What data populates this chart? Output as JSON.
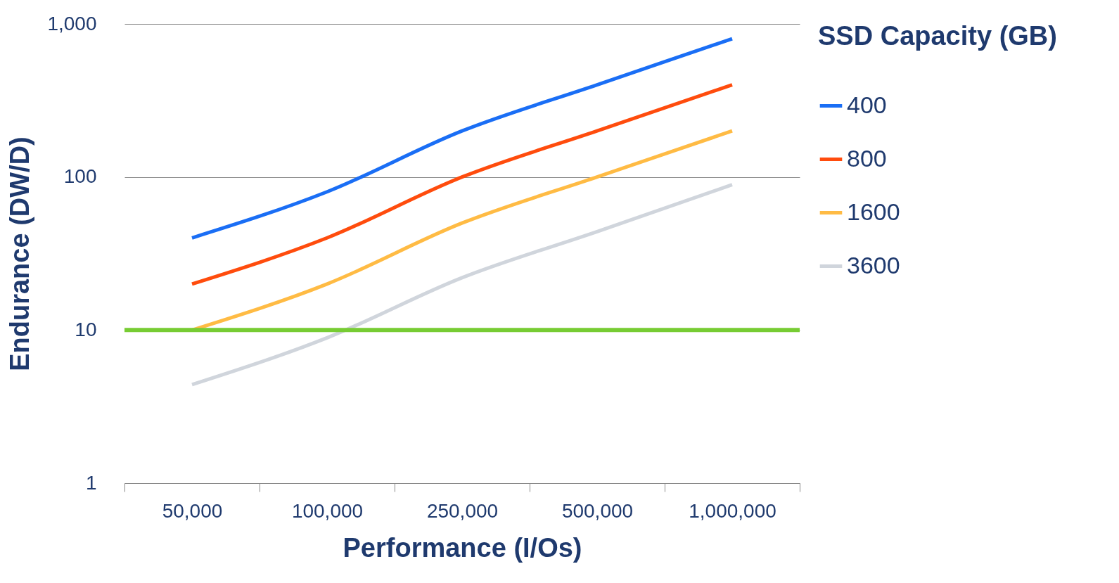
{
  "chart_data": {
    "type": "line",
    "xlabel": "Performance (I/Os)",
    "ylabel": "Endurance (DW/D)",
    "legend_title": "SSD Capacity (GB)",
    "categories": [
      "50,000",
      "100,000",
      "250,000",
      "500,000",
      "1,000,000"
    ],
    "series": [
      {
        "name": "400",
        "color": "#1a6ef5",
        "values": [
          40,
          80,
          200,
          400,
          800
        ]
      },
      {
        "name": "800",
        "color": "#ff4c0d",
        "values": [
          20,
          40,
          100,
          200,
          400
        ]
      },
      {
        "name": "1600",
        "color": "#ffbb44",
        "values": [
          10,
          20,
          50,
          100,
          200
        ]
      },
      {
        "name": "3600",
        "color": "#d0d5dc",
        "values": [
          4.4,
          8.9,
          22,
          44,
          89
        ]
      }
    ],
    "ylim": [
      1,
      1000
    ],
    "yticks": [
      1,
      10,
      100,
      {
        "value": 1000,
        "label": "1,000"
      }
    ],
    "log": true,
    "grid": "y",
    "legend": "right",
    "ref_lines": [
      {
        "axis": "y",
        "value": 10,
        "color": "#77cc33"
      }
    ]
  }
}
